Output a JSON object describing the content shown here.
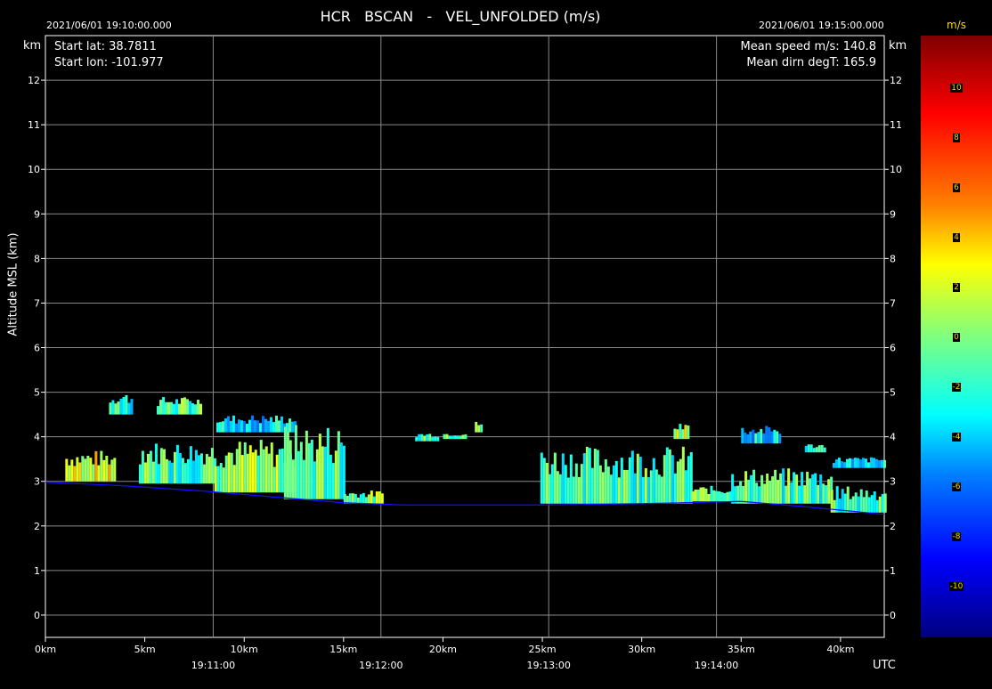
{
  "header": {
    "title": "HCR   BSCAN   -   VEL_UNFOLDED (m/s)",
    "start_time": "2021/06/01 19:10:00.000",
    "end_time": "2021/06/01 19:15:00.000",
    "start_lat": "Start lat: 38.7811",
    "start_lon": "Start lon: -101.977",
    "mean_speed": "Mean speed m/s: 140.8",
    "mean_dirn": "Mean dirn degT: 165.9",
    "km_left": "km",
    "km_right": "km",
    "y_axis_label": "Altitude MSL (km)",
    "utc_label": "UTC"
  },
  "colorbar": {
    "unit": "m/s",
    "ticks": [
      "10",
      "8",
      "6",
      "4",
      "2",
      "0",
      "-2",
      "-4",
      "-6",
      "-8",
      "-10"
    ],
    "colors": [
      "#7f0000",
      "#ff0000",
      "#ff7f00",
      "#ffff00",
      "#7fff7f",
      "#00ffff",
      "#007fff",
      "#0000ff",
      "#00007f"
    ]
  },
  "chart_data": {
    "type": "heatmap",
    "title": "HCR   BSCAN   -   VEL_UNFOLDED (m/s)",
    "ylabel": "Altitude MSL (km)",
    "ylim": [
      -0.5,
      13
    ],
    "y_ticks": [
      0,
      1,
      2,
      3,
      4,
      5,
      6,
      7,
      8,
      9,
      10,
      11,
      12
    ],
    "x_distance_ticks": [
      "0km",
      "5km",
      "10km",
      "15km",
      "20km",
      "25km",
      "30km",
      "35km",
      "40km"
    ],
    "x_distance_values_km": [
      0,
      5,
      10,
      15,
      20,
      25,
      30,
      35,
      40
    ],
    "x_distance_max_km": 42.2,
    "x_time_ticks": [
      "19:11:00",
      "19:12:00",
      "19:13:00",
      "19:14:00"
    ],
    "x_time_fraction": [
      0.2,
      0.4,
      0.6,
      0.8
    ],
    "colorbar_range": [
      -10,
      10
    ],
    "terrain_km": [
      [
        0,
        2.98
      ],
      [
        4,
        2.9
      ],
      [
        8,
        2.78
      ],
      [
        12,
        2.63
      ],
      [
        15,
        2.52
      ],
      [
        18,
        2.47
      ],
      [
        25,
        2.47
      ],
      [
        30,
        2.5
      ],
      [
        35,
        2.55
      ],
      [
        38,
        2.44
      ],
      [
        42.2,
        2.26
      ]
    ],
    "echo_regions": [
      {
        "x": [
          1.0,
          3.5
        ],
        "y": [
          3.0,
          3.7
        ],
        "v": 2
      },
      {
        "x": [
          3.2,
          4.4
        ],
        "y": [
          4.5,
          5.0
        ],
        "v": -2
      },
      {
        "x": [
          5.6,
          7.8
        ],
        "y": [
          4.5,
          4.9
        ],
        "v": -1
      },
      {
        "x": [
          4.7,
          8.5
        ],
        "y": [
          2.95,
          3.9
        ],
        "v": -1
      },
      {
        "x": [
          8.5,
          12.5
        ],
        "y": [
          2.75,
          3.95
        ],
        "v": 0
      },
      {
        "x": [
          8.6,
          12.6
        ],
        "y": [
          4.1,
          4.5
        ],
        "v": -3
      },
      {
        "x": [
          12.0,
          15.0
        ],
        "y": [
          2.6,
          4.3
        ],
        "v": -1
      },
      {
        "x": [
          15.0,
          17.0
        ],
        "y": [
          2.5,
          2.8
        ],
        "v": 0
      },
      {
        "x": [
          18.6,
          19.8
        ],
        "y": [
          3.9,
          4.1
        ],
        "v": -1
      },
      {
        "x": [
          20.0,
          21.2
        ],
        "y": [
          3.95,
          4.1
        ],
        "v": -1
      },
      {
        "x": [
          21.6,
          22.0
        ],
        "y": [
          4.1,
          4.35
        ],
        "v": 0
      },
      {
        "x": [
          24.9,
          32.5
        ],
        "y": [
          2.5,
          3.8
        ],
        "v": -1
      },
      {
        "x": [
          31.6,
          32.3
        ],
        "y": [
          3.95,
          4.3
        ],
        "v": 1
      },
      {
        "x": [
          32.5,
          34.5
        ],
        "y": [
          2.55,
          2.9
        ],
        "v": 0
      },
      {
        "x": [
          34.5,
          39.5
        ],
        "y": [
          2.5,
          3.3
        ],
        "v": -1
      },
      {
        "x": [
          35.0,
          36.9
        ],
        "y": [
          3.85,
          4.25
        ],
        "v": -3
      },
      {
        "x": [
          38.2,
          39.2
        ],
        "y": [
          3.65,
          3.85
        ],
        "v": -3
      },
      {
        "x": [
          39.6,
          42.2
        ],
        "y": [
          3.3,
          3.55
        ],
        "v": -3
      },
      {
        "x": [
          39.5,
          42.2
        ],
        "y": [
          2.3,
          2.9
        ],
        "v": -1
      }
    ]
  }
}
